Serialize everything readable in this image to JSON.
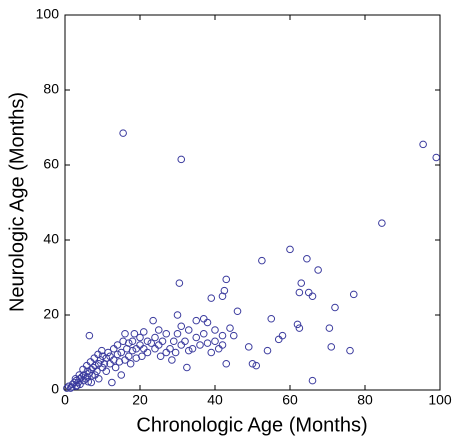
{
  "chart_data": {
    "type": "scatter",
    "color": "#3b3b9e",
    "x_label": "Chronologic Age (Months)",
    "y_label": "Neurologic Age (Months)",
    "xlim": [
      0,
      100
    ],
    "ylim": [
      0,
      100
    ],
    "xticks": [
      0,
      20,
      40,
      60,
      80,
      100
    ],
    "yticks": [
      0,
      20,
      40,
      60,
      80,
      100
    ],
    "x": [
      15.5,
      31,
      95.5,
      99,
      84.5,
      60,
      64.5,
      67.5,
      52.5,
      43,
      42.5,
      42,
      39,
      63,
      62.5,
      65,
      66,
      77,
      30.5,
      46,
      55,
      62,
      62.5,
      70.5,
      72,
      76,
      71,
      66,
      54,
      57,
      58,
      49,
      50,
      51,
      43,
      32.5,
      6.5,
      30,
      35,
      37,
      38,
      40,
      42,
      44,
      45,
      33,
      0.5,
      1,
      1.5,
      2,
      2.5,
      3,
      3,
      3.5,
      4,
      4,
      4.5,
      5,
      5,
      5.5,
      6,
      6,
      6.5,
      7,
      7,
      7.5,
      8,
      8,
      8.5,
      9,
      9,
      9.5,
      10,
      10,
      10.5,
      11,
      11,
      11.5,
      12,
      12,
      12.5,
      13,
      13,
      13.5,
      14,
      14,
      14.5,
      15,
      15,
      15.5,
      16,
      16,
      16.5,
      17,
      17,
      17.5,
      18,
      18,
      18.5,
      19,
      19,
      20,
      20,
      20.5,
      21,
      21,
      22,
      22,
      23,
      23.5,
      24,
      24,
      25,
      25,
      25.5,
      26,
      27,
      27,
      28,
      28.5,
      29,
      29.5,
      30,
      31,
      31,
      32,
      33,
      34,
      35,
      36,
      37,
      38,
      39,
      40,
      41,
      42,
      1.8,
      2.8,
      3.8,
      4.8,
      5.8,
      6.8,
      7.8,
      8.8,
      9.8,
      3.2,
      6.2,
      7.2
    ],
    "values": [
      68.5,
      61.5,
      65.5,
      62,
      44.5,
      37.5,
      35,
      32,
      34.5,
      29.5,
      26.5,
      25,
      24.5,
      28.5,
      26,
      26,
      25,
      25.5,
      28.5,
      21,
      19,
      17.5,
      16.5,
      16.5,
      22,
      10.5,
      11.5,
      2.5,
      10.5,
      13.5,
      14.5,
      11.5,
      7,
      6.5,
      7,
      6,
      14.5,
      20,
      18.5,
      19,
      18,
      16,
      14.5,
      16.5,
      14.5,
      16,
      0.5,
      1,
      0.5,
      1.5,
      2,
      1,
      2.5,
      2,
      3,
      1.5,
      3.5,
      2.5,
      4,
      3,
      5,
      3.5,
      4.5,
      5.5,
      2,
      6,
      4,
      6.5,
      5,
      7,
      3,
      8,
      6,
      9,
      7,
      5,
      8.5,
      10,
      7,
      9,
      2,
      8,
      11,
      6,
      9.5,
      12,
      7.5,
      10,
      4,
      13,
      8,
      15,
      11,
      12.5,
      9,
      7,
      13,
      10.5,
      15,
      11,
      8.5,
      12,
      14,
      9,
      15.5,
      11,
      13,
      10,
      12.5,
      18.5,
      14,
      11,
      16,
      12,
      9,
      13,
      15,
      10,
      11,
      8,
      13,
      10,
      15,
      12,
      17,
      13,
      10.5,
      11,
      14,
      12,
      15,
      12.5,
      10,
      13,
      11,
      12,
      0.8,
      3,
      4,
      5.5,
      6.5,
      7.5,
      8.5,
      9.5,
      10.5,
      1.2,
      2.2,
      3.8
    ]
  }
}
